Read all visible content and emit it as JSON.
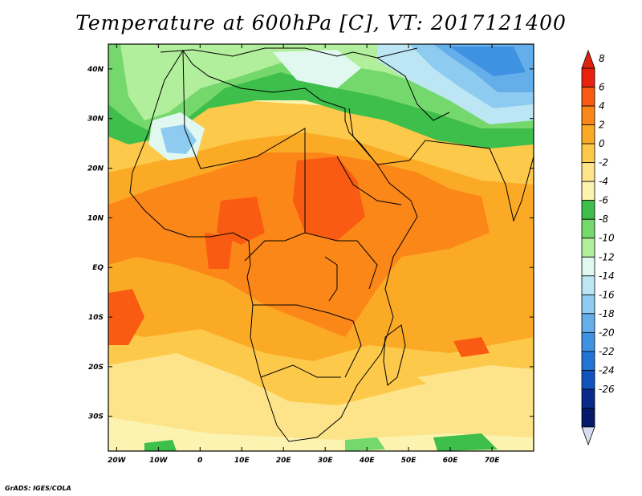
{
  "title": "Temperature at 600hPa [C], VT: 2017121400",
  "credit": "GrADS: IGES/COLA",
  "lat_labels": [
    "40N",
    "30N",
    "20N",
    "10N",
    "EQ",
    "10S",
    "20S",
    "30S"
  ],
  "lat_values": [
    40,
    30,
    20,
    10,
    0,
    -10,
    -20,
    -30
  ],
  "lon_labels": [
    "20W",
    "10W",
    "0",
    "10E",
    "20E",
    "30E",
    "40E",
    "50E",
    "60E",
    "70E"
  ],
  "lon_values": [
    -20,
    -10,
    0,
    10,
    20,
    30,
    40,
    50,
    60,
    70
  ],
  "extent": {
    "lon_min": -22,
    "lon_max": 80,
    "lat_min": -37,
    "lat_max": 45
  },
  "colorbar": {
    "labels": [
      "8",
      "6",
      "4",
      "2",
      "0",
      "-2",
      "-4",
      "-6",
      "-8",
      "-10",
      "-12",
      "-14",
      "-16",
      "-18",
      "-20",
      "-22",
      "-24",
      "-26"
    ],
    "colors": [
      "#e8220e",
      "#fa5b12",
      "#fb8718",
      "#fbaa26",
      "#fcc94a",
      "#fde48a",
      "#fcf3b0",
      "#3ebe4a",
      "#75d86c",
      "#b2ef9c",
      "#e0f8f0",
      "#bde6f5",
      "#8ecbf0",
      "#64aeea",
      "#3f92e2",
      "#2273d6",
      "#1154bd",
      "#082a8a",
      "#051a68"
    ],
    "top_color": "#e0230f",
    "bottom_color": "#d7ddf2"
  }
}
